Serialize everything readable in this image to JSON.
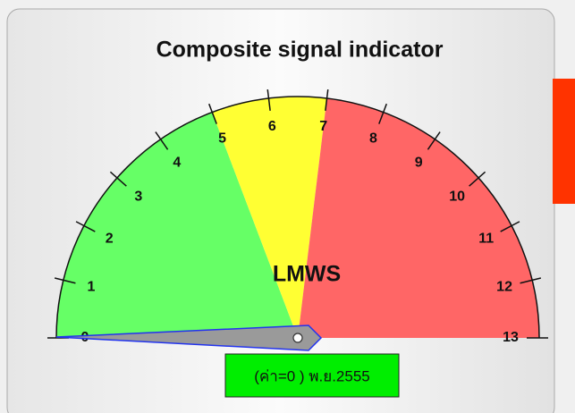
{
  "chart_data": {
    "type": "gauge",
    "title": "Composite signal indicator",
    "label": "LMWS",
    "range": [
      0,
      13
    ],
    "ticks": [
      0,
      1,
      2,
      3,
      4,
      5,
      6,
      7,
      8,
      9,
      10,
      11,
      12,
      13
    ],
    "bands": [
      {
        "from": 0,
        "to": 5,
        "color": "#66ff66"
      },
      {
        "from": 5,
        "to": 7,
        "color": "#ffff33"
      },
      {
        "from": 7,
        "to": 13,
        "color": "#ff6666"
      }
    ],
    "value": 0,
    "value_label": "(ค่า=0 ) พ.ย.2555"
  }
}
